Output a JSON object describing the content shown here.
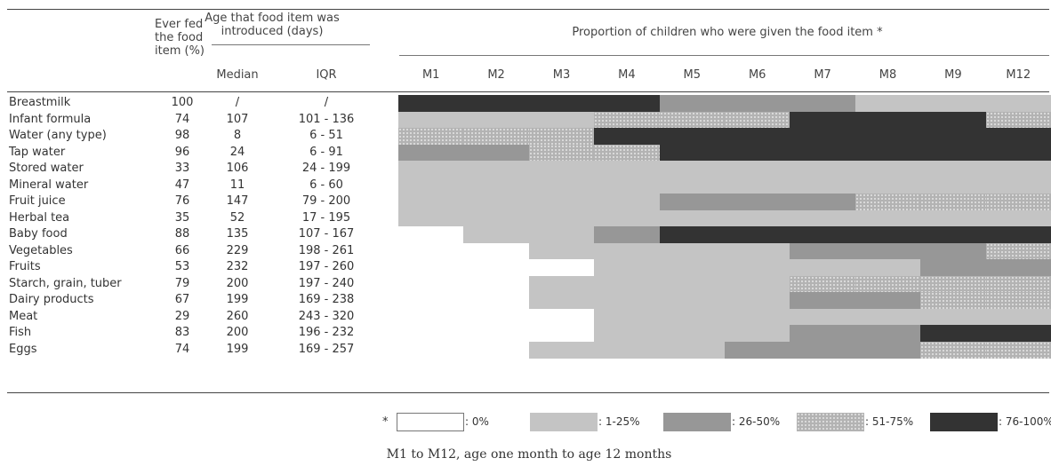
{
  "header": {
    "ever_fed": [
      "Ever fed",
      "the food",
      "item (%)"
    ],
    "age_intro": [
      "Age that food item was",
      "introduced (days)"
    ],
    "median": "Median",
    "iqr": "IQR",
    "proportion": "Proportion of children who were given the food item *"
  },
  "months": [
    "M1",
    "M2",
    "M3",
    "M4",
    "M5",
    "M6",
    "M7",
    "M8",
    "M9",
    "M12"
  ],
  "rows": [
    {
      "food": "Breastmilk",
      "ever": "100",
      "median": "/",
      "iqr": "/"
    },
    {
      "food": "Infant formula",
      "ever": "74",
      "median": "107",
      "iqr": "101 - 136"
    },
    {
      "food": "Water (any type)",
      "ever": "98",
      "median": "8",
      "iqr": "6 - 51"
    },
    {
      "food": "Tap water",
      "ever": "96",
      "median": "24",
      "iqr": "6 - 91"
    },
    {
      "food": "Stored water",
      "ever": "33",
      "median": "106",
      "iqr": "24 - 199"
    },
    {
      "food": "Mineral water",
      "ever": "47",
      "median": "11",
      "iqr": "6 - 60"
    },
    {
      "food": "Fruit juice",
      "ever": "76",
      "median": "147",
      "iqr": "79 - 200"
    },
    {
      "food": "Herbal tea",
      "ever": "35",
      "median": "52",
      "iqr": "17 - 195"
    },
    {
      "food": "Baby food",
      "ever": "88",
      "median": "135",
      "iqr": "107 - 167"
    },
    {
      "food": "Vegetables",
      "ever": "66",
      "median": "229",
      "iqr": "198 - 261"
    },
    {
      "food": "Fruits",
      "ever": "53",
      "median": "232",
      "iqr": "197 - 260"
    },
    {
      "food": "Starch, grain, tuber",
      "ever": "79",
      "median": "200",
      "iqr": "197 - 240"
    },
    {
      "food": "Dairy products",
      "ever": "67",
      "median": "199",
      "iqr": "169 - 238"
    },
    {
      "food": "Meat",
      "ever": "29",
      "median": "260",
      "iqr": "243 - 320"
    },
    {
      "food": "Fish",
      "ever": "83",
      "median": "200",
      "iqr": "196 - 232"
    },
    {
      "food": "Eggs",
      "ever": "74",
      "median": "199",
      "iqr": "169 - 257"
    }
  ],
  "chart_data": {
    "type": "heatmap",
    "title": "Proportion of children who were given the food item *",
    "x_categories": [
      "M1",
      "M2",
      "M3",
      "M4",
      "M5",
      "M6",
      "M7",
      "M8",
      "M9",
      "M12"
    ],
    "y_categories": [
      "Breastmilk",
      "Infant formula",
      "Water (any type)",
      "Tap water",
      "Stored water",
      "Mineral water",
      "Fruit juice",
      "Herbal tea",
      "Baby food",
      "Vegetables",
      "Fruits",
      "Starch, grain, tuber",
      "Dairy products",
      "Meat",
      "Fish",
      "Eggs"
    ],
    "levels": [
      "0%",
      "1-25%",
      "26-50%",
      "51-75%",
      "76-100%"
    ],
    "values": [
      [
        4,
        4,
        4,
        4,
        2,
        2,
        2,
        1,
        1,
        1
      ],
      [
        1,
        1,
        1,
        3,
        3,
        3,
        4,
        4,
        4,
        3
      ],
      [
        3,
        3,
        3,
        4,
        4,
        4,
        4,
        4,
        4,
        4
      ],
      [
        2,
        2,
        3,
        3,
        4,
        4,
        4,
        4,
        4,
        4
      ],
      [
        1,
        1,
        1,
        1,
        1,
        1,
        1,
        1,
        1,
        1
      ],
      [
        1,
        1,
        1,
        1,
        1,
        1,
        1,
        1,
        1,
        1
      ],
      [
        1,
        1,
        1,
        1,
        2,
        2,
        2,
        3,
        3,
        3
      ],
      [
        1,
        1,
        1,
        1,
        1,
        1,
        1,
        1,
        1,
        1
      ],
      [
        0,
        1,
        1,
        2,
        4,
        4,
        4,
        4,
        4,
        4
      ],
      [
        0,
        0,
        1,
        1,
        1,
        1,
        2,
        2,
        2,
        3
      ],
      [
        0,
        0,
        0,
        1,
        1,
        1,
        1,
        1,
        2,
        2
      ],
      [
        0,
        0,
        1,
        1,
        1,
        1,
        3,
        3,
        3,
        3
      ],
      [
        0,
        0,
        1,
        1,
        1,
        1,
        2,
        2,
        3,
        3
      ],
      [
        0,
        0,
        0,
        1,
        1,
        1,
        1,
        1,
        1,
        1
      ],
      [
        0,
        0,
        0,
        1,
        1,
        1,
        2,
        2,
        4,
        4
      ],
      [
        0,
        0,
        1,
        1,
        1,
        2,
        2,
        2,
        3,
        3
      ]
    ]
  },
  "legend": {
    "marker": "*",
    "items": [
      {
        "label": ": 0%",
        "level": 0
      },
      {
        "label": ": 1-25%",
        "level": 1
      },
      {
        "label": ": 26-50%",
        "level": 2
      },
      {
        "label": ": 51-75%",
        "level": 3
      },
      {
        "label": ": 76-100%",
        "level": 4
      }
    ]
  },
  "caption": "M1 to M12, age one month to age 12 months",
  "colors": {
    "level0": "#ffffff",
    "level1": "#c4c4c4",
    "level2": "#979797",
    "level3": "#b3b3b3",
    "level4": "#333333"
  }
}
